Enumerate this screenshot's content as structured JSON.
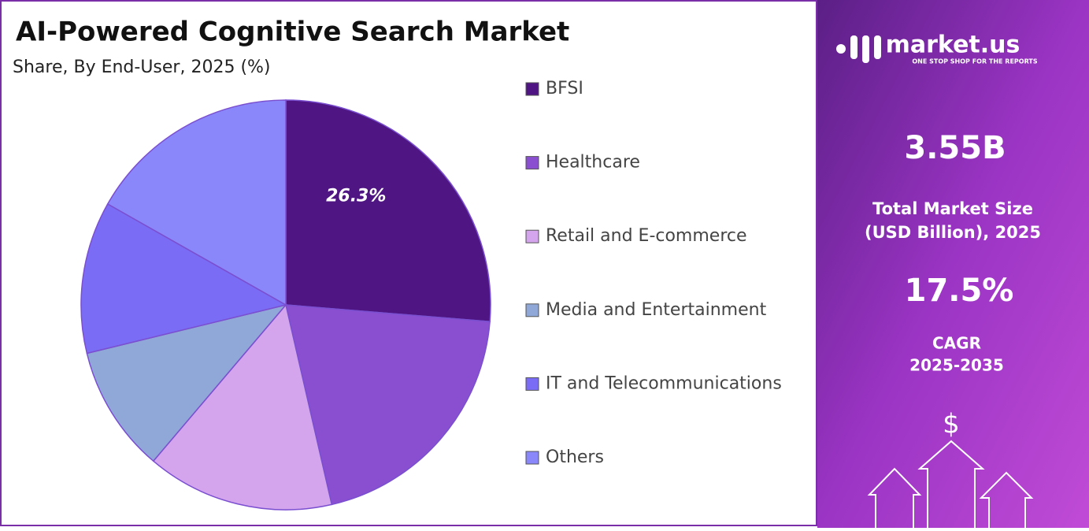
{
  "chart_data": {
    "type": "pie",
    "title": "AI-Powered Cognitive Search Market",
    "subtitle": "Share, By End-User, 2025 (%)",
    "categories": [
      "BFSI",
      "Healthcare",
      "Retail and E-commerce",
      "Media and Entertainment",
      "IT and Telecommunications",
      "Others"
    ],
    "values": [
      26.3,
      20.1,
      14.8,
      10.0,
      12.0,
      16.8
    ],
    "value_labels": [
      "26.3%",
      null,
      null,
      null,
      null,
      null
    ],
    "colors": [
      "#4e1583",
      "#8a4fd1",
      "#d4a5ec",
      "#8fa8d8",
      "#7b6cf5",
      "#8a87fb"
    ]
  },
  "panel": {
    "brand": "market.us",
    "tagline": "ONE STOP SHOP FOR THE REPORTS",
    "market_size": "3.55B",
    "market_size_label": [
      "Total Market Size",
      "(USD Billion), 2025"
    ],
    "cagr": "17.5%",
    "cagr_label": [
      "CAGR",
      "2025-2035"
    ],
    "currency_icon": "$"
  }
}
